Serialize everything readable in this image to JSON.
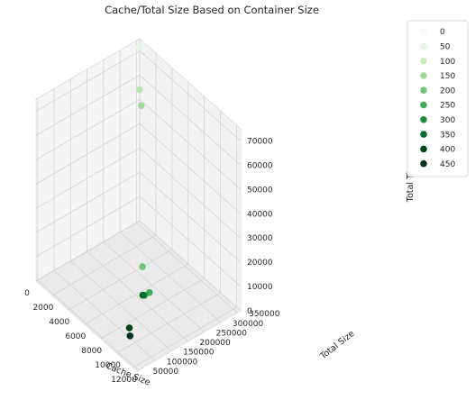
{
  "chart_data": {
    "type": "scatter3d",
    "title": "Cache/Total Size Based on Container Size",
    "xlabel": "Cache Size",
    "ylabel": "Total Size",
    "zlabel": "Total Time",
    "xlim": [
      0,
      12500
    ],
    "ylim": [
      45000,
      360000
    ],
    "zlim": [
      0,
      75000
    ],
    "x_ticks": [
      0,
      2000,
      4000,
      6000,
      8000,
      10000,
      12000
    ],
    "y_ticks": [
      50000,
      100000,
      150000,
      200000,
      250000,
      300000,
      350000
    ],
    "z_ticks": [
      0,
      10000,
      20000,
      30000,
      40000,
      50000,
      60000,
      70000
    ],
    "grid": true,
    "legend_position": "outside-right",
    "legend": [
      {
        "label": "0",
        "color": "#f7fcf5"
      },
      {
        "label": "50",
        "color": "#e5f5e0"
      },
      {
        "label": "100",
        "color": "#c7e9c0"
      },
      {
        "label": "150",
        "color": "#a1d99b"
      },
      {
        "label": "200",
        "color": "#74c476"
      },
      {
        "label": "250",
        "color": "#41ab5d"
      },
      {
        "label": "300",
        "color": "#238b45"
      },
      {
        "label": "350",
        "color": "#006d2c"
      },
      {
        "label": "400",
        "color": "#00441b"
      },
      {
        "label": "450",
        "color": "#00331a"
      }
    ],
    "points": [
      {
        "x": 100,
        "y": 355000,
        "z": 72000,
        "c": 50
      },
      {
        "x": 400,
        "y": 350000,
        "z": 56000,
        "c": 120
      },
      {
        "x": 1000,
        "y": 340000,
        "z": 52000,
        "c": 150
      },
      {
        "x": 4000,
        "y": 270000,
        "z": 0,
        "c": 200
      },
      {
        "x": 6500,
        "y": 230000,
        "z": 0,
        "c": 250
      },
      {
        "x": 6500,
        "y": 215000,
        "z": 0,
        "c": 300
      },
      {
        "x": 6400,
        "y": 212000,
        "z": 0,
        "c": 350
      },
      {
        "x": 8500,
        "y": 120000,
        "z": 0,
        "c": 400
      },
      {
        "x": 9200,
        "y": 105000,
        "z": 0,
        "c": 450
      }
    ]
  }
}
